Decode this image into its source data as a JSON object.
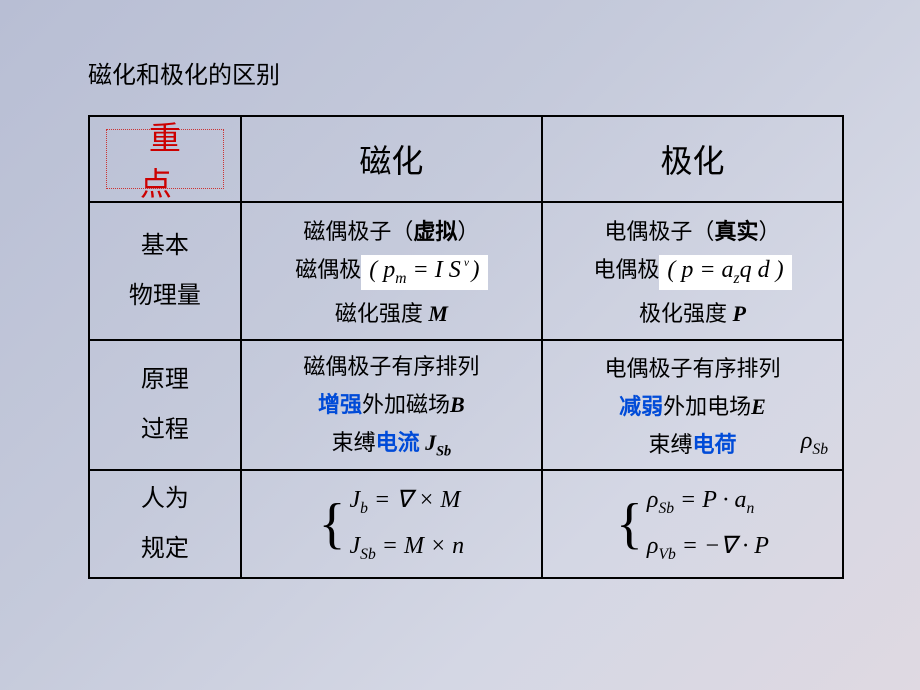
{
  "title": "磁化和极化的区别",
  "header_keypoint": "重点",
  "col_magnetization": "磁化",
  "col_polarization": "极化",
  "row1_label_a": "基本",
  "row1_label_b": "物理量",
  "row2_label_a": "原理",
  "row2_label_b": "过程",
  "row3_label_a": "人为",
  "row3_label_b": "规定",
  "mag": {
    "line1_pre": "磁偶极子（",
    "line1_bold": "虚拟",
    "line1_post": "）",
    "line2_pre": "磁偶极",
    "formula": "( p",
    "formula_sub": "m",
    "formula_mid": " = I S",
    "formula_hat": " ͮ",
    "formula_end": " )",
    "line3_pre": "磁化强度  ",
    "line3_sym": "M",
    "p_line1": "磁偶极子有序排列",
    "p_line2a": "增强",
    "p_line2b": "外加磁场",
    "p_line2c": "B",
    "p_line3a": "束缚",
    "p_line3b": "电流 ",
    "p_line3c": "J",
    "p_line3d": "Sb",
    "eq1": "J",
    "eq1s": "b",
    "eq1r": " = ∇ × M",
    "eq2": "J",
    "eq2s": "Sb",
    "eq2r": " = M × n"
  },
  "pol": {
    "line1_pre": "电偶极子（",
    "line1_bold": "真实",
    "line1_post": "）",
    "line2_pre": "电偶极",
    "formula": "( p = a",
    "formula_sub": "z",
    "formula_mid": "q d )",
    "line3_pre": "极化强度  ",
    "line3_sym": "P",
    "p_line1": "电偶极子有序排列",
    "p_line2a": "减弱",
    "p_line2b": "外加电场",
    "p_line2c": "E",
    "p_line3a": "束缚",
    "p_line3b": "电荷 ",
    "p_rho": "ρ",
    "p_rho_s": "Sb",
    "eq1": "ρ",
    "eq1s": "Sb",
    "eq1r": " = P · a",
    "eq1rs": "n",
    "eq2": "ρ",
    "eq2s": "Vb",
    "eq2r": " = −∇ · P"
  },
  "brace": "{"
}
